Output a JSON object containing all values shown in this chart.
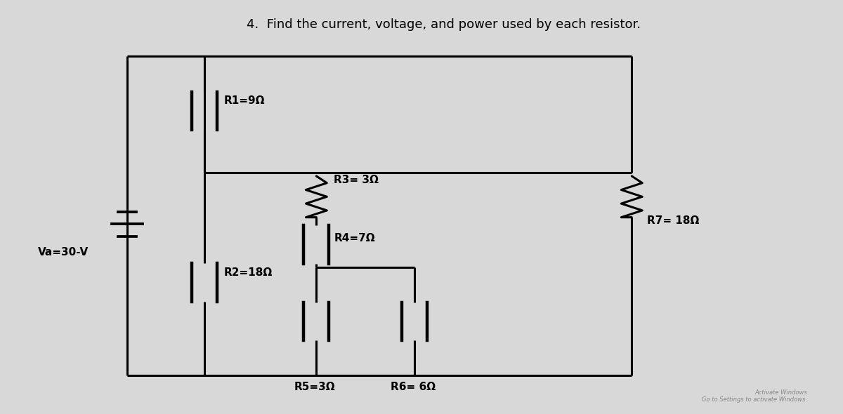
{
  "title": "4.  Find the current, voltage, and power used by each resistor.",
  "title_fontsize": 13,
  "bg_color": "#d8d8d8",
  "paper_color": "#e8e8e8",
  "line_color": "#000000",
  "line_width": 2.2,
  "labels": {
    "Va": "Va=30-V",
    "R1": "R1=9Ω",
    "R2": "R2=18Ω",
    "R3": "R3= 3Ω",
    "R4": "R4=7Ω",
    "R5": "R5=3Ω",
    "R6": "R6= 6Ω",
    "R7": "R7= 18Ω"
  },
  "label_fontsize": 11
}
